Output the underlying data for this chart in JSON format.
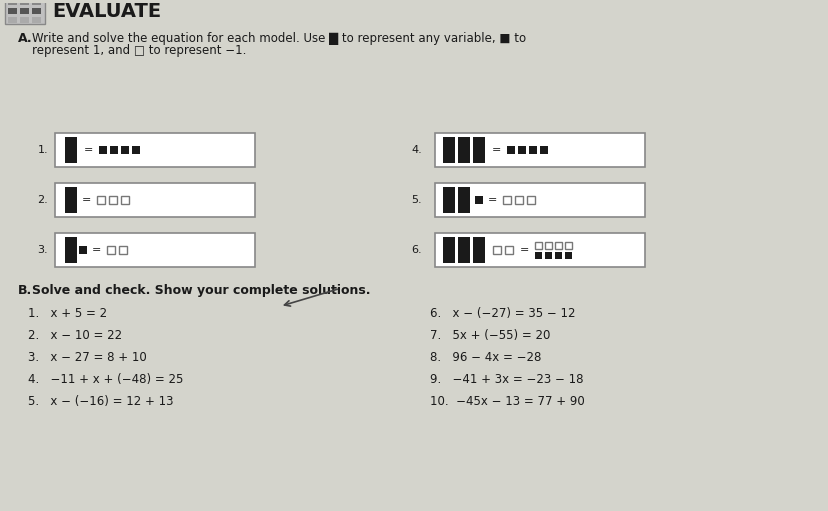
{
  "title": "EVALUATE",
  "bg_color": "#d4d4cc",
  "section_A_label": "A.",
  "section_A_line1": "Write and solve the equation for each model. Use █ to represent any variable, ■ to",
  "section_A_line2": "represent 1, and □ to represent −1.",
  "section_B_label": "B.",
  "section_B_text": "Solve and check. Show your complete solutions.",
  "left_problems": [
    "1.   x + 5 = 2",
    "2.   x − 10 = 22",
    "3.   x − 27 = 8 + 10",
    "4.   −11 + x + (−48) = 25",
    "5.   x − (−16) = 12 + 13"
  ],
  "right_problems": [
    "6.   x − (−27) = 35 − 12",
    "7.   5x + (−55) = 20",
    "8.   96 − 4x = −28",
    "9.   −41 + 3x = −23 − 18",
    "10.  −45x − 13 = 77 + 90"
  ],
  "dark_color": "#1a1a1a",
  "open_sq_color": "#777777",
  "box_border_color": "#888888",
  "text_color": "#1a1a1a"
}
